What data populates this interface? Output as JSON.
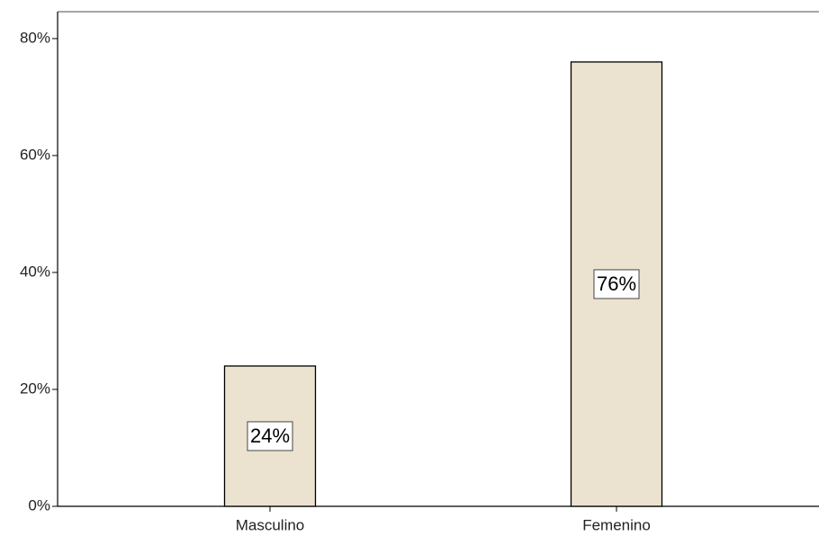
{
  "chart_data": {
    "type": "bar",
    "categories": [
      "Masculino",
      "Femenino"
    ],
    "values": [
      24,
      76
    ],
    "value_labels": [
      "24%",
      "76%"
    ],
    "color": "#ebe3cf",
    "ylim": [
      0,
      84.6
    ],
    "yticks": [
      {
        "value": 0,
        "label": "0%"
      },
      {
        "value": 20,
        "label": "20%"
      },
      {
        "value": 40,
        "label": "40%"
      },
      {
        "value": 60,
        "label": "60%"
      },
      {
        "value": 80,
        "label": "80%"
      }
    ],
    "grid": false
  }
}
